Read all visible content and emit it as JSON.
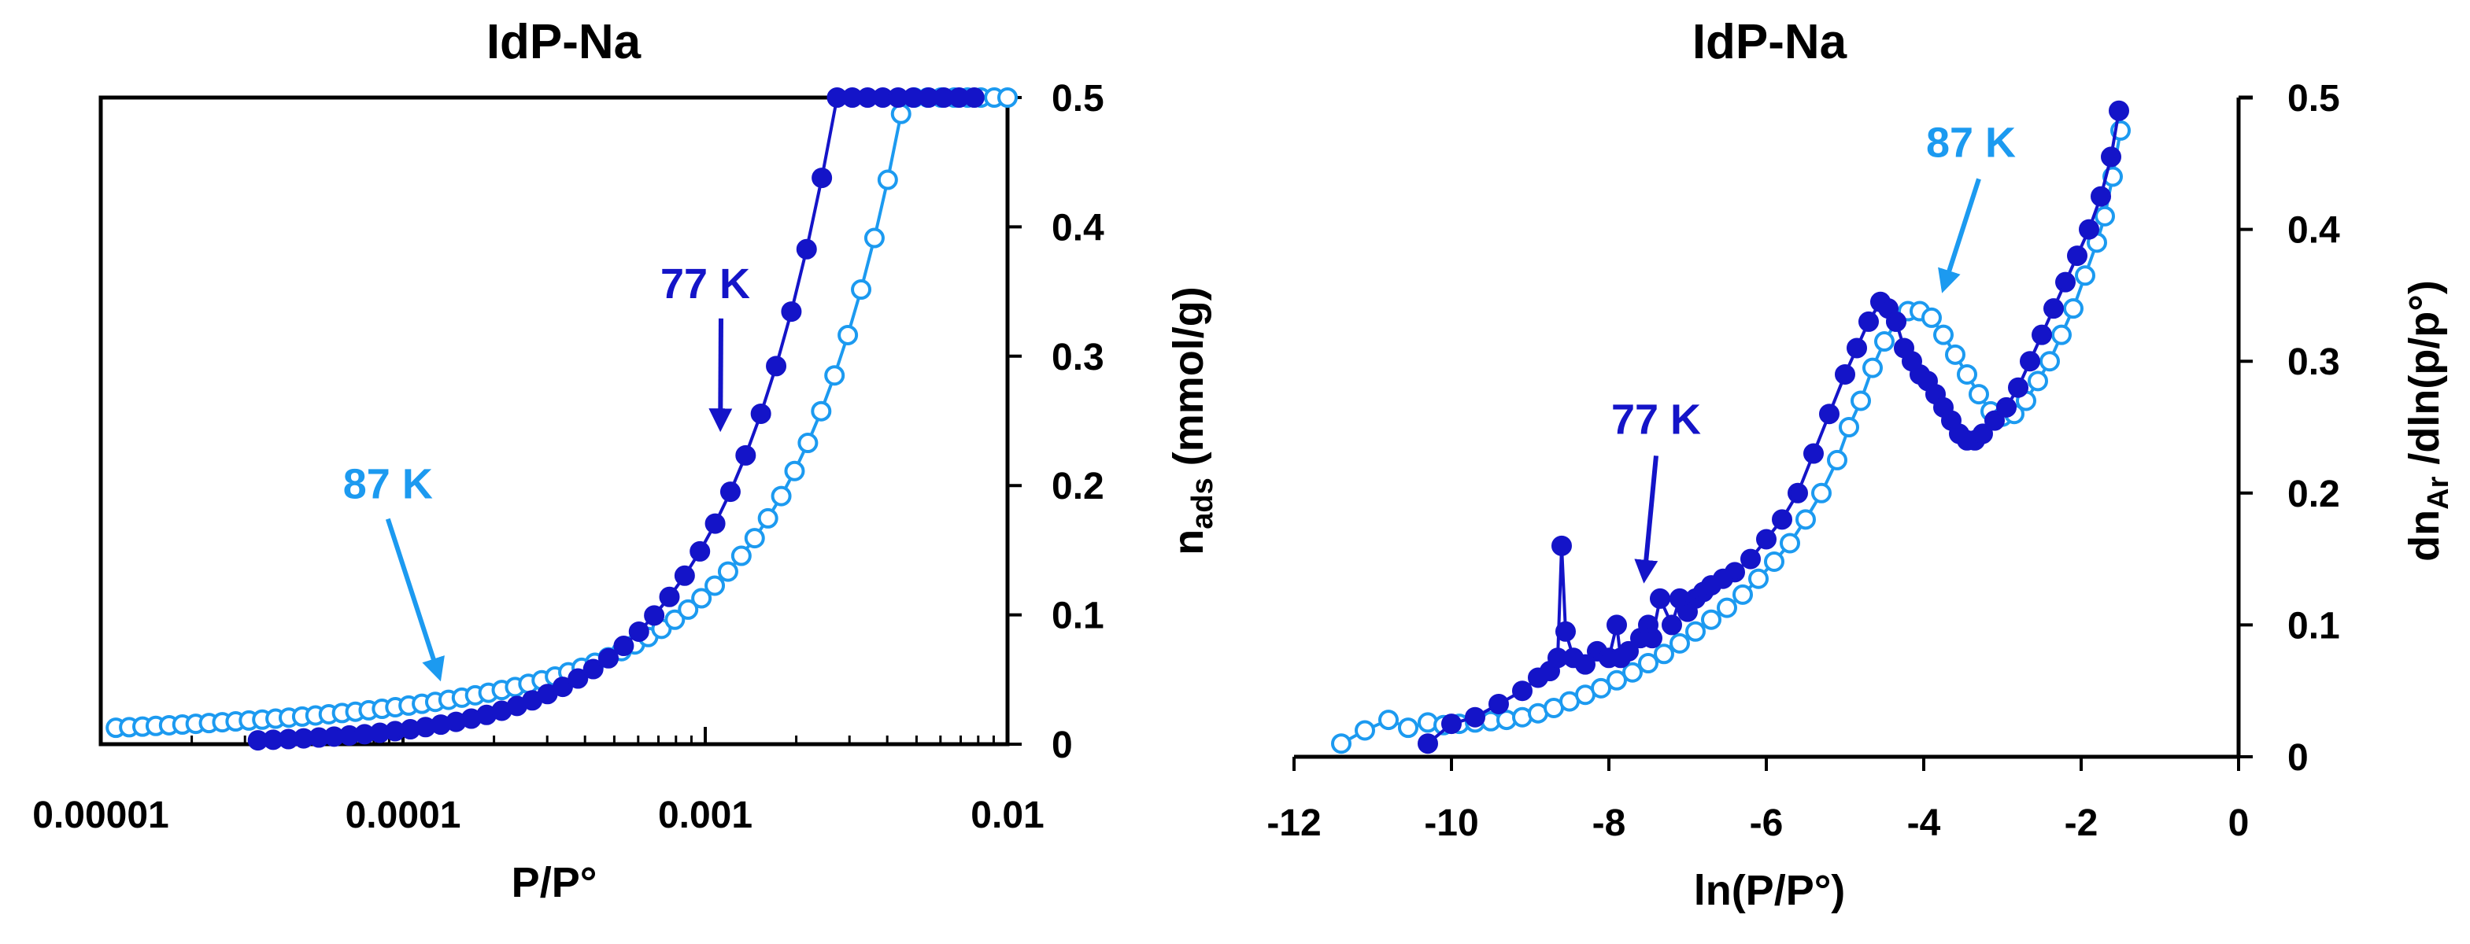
{
  "colors": {
    "k77": "#1414c8",
    "k87": "#1c9af0",
    "axis": "#000000"
  },
  "chart_data": [
    {
      "type": "scatter",
      "title": "IdP-Na",
      "xlabel": "P/P°",
      "ylabel": {
        "main": "n",
        "sub": "ads",
        "rest": " (mmol/g)"
      },
      "xscale": "log",
      "xlim": [
        1e-05,
        0.01
      ],
      "ylim": [
        0,
        0.5
      ],
      "x_ticks": [
        1e-05,
        0.0001,
        0.001,
        0.01
      ],
      "x_tick_labels": [
        "0.00001",
        "0.0001",
        "0.001",
        "0.01"
      ],
      "y_ticks": [
        0,
        0.1,
        0.2,
        0.3,
        0.4,
        0.5
      ],
      "y_tick_labels": [
        "0",
        "0.1",
        "0.2",
        "0.3",
        "0.4",
        "0.5"
      ],
      "y_axis_side": "right",
      "series": [
        {
          "name": "77 K",
          "color": "#1414c8",
          "marker": "filled-circle",
          "x_log_range": [
            -4.48,
            -2.11
          ],
          "n_points": 48,
          "model": {
            "a": 3e-05,
            "n": 1.18
          }
        },
        {
          "name": "87 K",
          "color": "#1c9af0",
          "marker": "open-circle",
          "x_log_range": [
            -4.95,
            -2.0
          ],
          "n_points": 68,
          "model": {
            "a": 0.00016,
            "n": 1.28,
            "low": {
              "a": 0.06,
              "n": 0.33,
              "x_to": -3.7
            }
          }
        }
      ],
      "annotations": [
        {
          "text": "77 K",
          "color": "#1414c8",
          "label_x_log": -3.0,
          "label_y": 0.345,
          "arrow_to_x_log": -2.95,
          "arrow_to_y": 0.245
        },
        {
          "text": "87 K",
          "color": "#1c9af0",
          "label_x_log": -4.05,
          "label_y": 0.19,
          "arrow_to_x_log": -3.88,
          "arrow_to_y": 0.052
        }
      ]
    },
    {
      "type": "scatter",
      "title": "IdP-Na",
      "xlabel": "ln(P/P°)",
      "ylabel": {
        "main": "dn",
        "sub": "Ar",
        "rest": " /dln(p/p°)"
      },
      "xlim": [
        -12,
        0
      ],
      "ylim": [
        0,
        0.5
      ],
      "x_ticks": [
        -12,
        -10,
        -8,
        -6,
        -4,
        -2,
        0
      ],
      "x_tick_labels": [
        "-12",
        "-10",
        "-8",
        "-6",
        "-4",
        "-2",
        "0"
      ],
      "y_ticks": [
        0,
        0.1,
        0.2,
        0.3,
        0.4,
        0.5
      ],
      "y_tick_labels": [
        "0",
        "0.1",
        "0.2",
        "0.3",
        "0.4",
        "0.5"
      ],
      "y_axis_side": "right",
      "series": [
        {
          "name": "77 K",
          "color": "#1414c8",
          "marker": "filled-circle",
          "x": [
            -10.3,
            -10.0,
            -9.7,
            -9.4,
            -9.1,
            -8.9,
            -8.75,
            -8.65,
            -8.6,
            -8.55,
            -8.45,
            -8.3,
            -8.15,
            -8.0,
            -7.9,
            -7.85,
            -7.75,
            -7.6,
            -7.5,
            -7.45,
            -7.35,
            -7.2,
            -7.1,
            -7.0,
            -6.9,
            -6.8,
            -6.7,
            -6.55,
            -6.4,
            -6.2,
            -6.0,
            -5.8,
            -5.6,
            -5.4,
            -5.2,
            -5.0,
            -4.85,
            -4.7,
            -4.55,
            -4.45,
            -4.35,
            -4.25,
            -4.15,
            -4.05,
            -3.95,
            -3.85,
            -3.75,
            -3.65,
            -3.55,
            -3.45,
            -3.35,
            -3.25,
            -3.1,
            -2.95,
            -2.8,
            -2.65,
            -2.5,
            -2.35,
            -2.2,
            -2.05,
            -1.9,
            -1.75,
            -1.62,
            -1.52
          ],
          "y": [
            0.01,
            0.025,
            0.03,
            0.04,
            0.05,
            0.06,
            0.065,
            0.075,
            0.16,
            0.095,
            0.075,
            0.07,
            0.08,
            0.075,
            0.1,
            0.075,
            0.08,
            0.09,
            0.1,
            0.09,
            0.12,
            0.1,
            0.12,
            0.11,
            0.12,
            0.125,
            0.13,
            0.135,
            0.14,
            0.15,
            0.165,
            0.18,
            0.2,
            0.23,
            0.26,
            0.29,
            0.31,
            0.33,
            0.345,
            0.34,
            0.33,
            0.31,
            0.3,
            0.29,
            0.285,
            0.275,
            0.265,
            0.255,
            0.245,
            0.24,
            0.24,
            0.245,
            0.255,
            0.265,
            0.28,
            0.3,
            0.32,
            0.34,
            0.36,
            0.38,
            0.4,
            0.425,
            0.455,
            0.49
          ]
        },
        {
          "name": "87 K",
          "color": "#1c9af0",
          "marker": "open-circle",
          "x": [
            -11.4,
            -11.1,
            -10.8,
            -10.55,
            -10.3,
            -10.1,
            -9.9,
            -9.7,
            -9.5,
            -9.3,
            -9.1,
            -8.9,
            -8.7,
            -8.5,
            -8.3,
            -8.1,
            -7.9,
            -7.7,
            -7.5,
            -7.3,
            -7.1,
            -6.9,
            -6.7,
            -6.5,
            -6.3,
            -6.1,
            -5.9,
            -5.7,
            -5.5,
            -5.3,
            -5.1,
            -4.95,
            -4.8,
            -4.65,
            -4.5,
            -4.35,
            -4.2,
            -4.05,
            -3.9,
            -3.75,
            -3.6,
            -3.45,
            -3.3,
            -3.15,
            -3.0,
            -2.85,
            -2.7,
            -2.55,
            -2.4,
            -2.25,
            -2.1,
            -1.95,
            -1.8,
            -1.7,
            -1.6,
            -1.5
          ],
          "y": [
            0.01,
            0.02,
            0.028,
            0.022,
            0.026,
            0.024,
            0.025,
            0.026,
            0.027,
            0.028,
            0.03,
            0.033,
            0.037,
            0.042,
            0.047,
            0.052,
            0.058,
            0.064,
            0.071,
            0.078,
            0.086,
            0.095,
            0.104,
            0.113,
            0.123,
            0.135,
            0.148,
            0.162,
            0.18,
            0.2,
            0.225,
            0.25,
            0.27,
            0.295,
            0.315,
            0.33,
            0.338,
            0.338,
            0.333,
            0.32,
            0.305,
            0.29,
            0.275,
            0.262,
            0.258,
            0.26,
            0.27,
            0.285,
            0.3,
            0.32,
            0.34,
            0.365,
            0.39,
            0.41,
            0.44,
            0.475
          ]
        }
      ],
      "annotations": [
        {
          "text": "77 K",
          "color": "#1414c8",
          "label_x": -7.4,
          "label_y": 0.245,
          "arrow_to_x": -7.55,
          "arrow_to_y": 0.135
        },
        {
          "text": "87 K",
          "color": "#1c9af0",
          "label_x": -3.4,
          "label_y": 0.455,
          "arrow_to_x": -3.75,
          "arrow_to_y": 0.355
        }
      ]
    }
  ]
}
